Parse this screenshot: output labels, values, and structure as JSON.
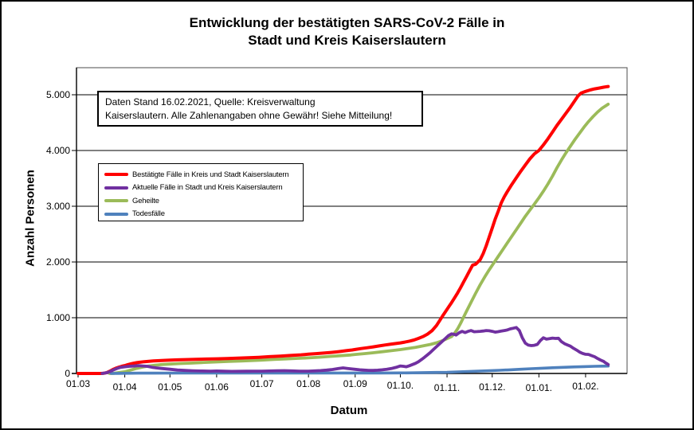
{
  "window": {
    "background": "#FFFFFF",
    "border_color": "#000000"
  },
  "chart_data": {
    "type": "line",
    "title": "Entwicklung der bestätigten SARS-CoV-2 Fälle in\nStadt und Kreis Kaiserslautern",
    "xlabel": "Datum",
    "ylabel": "Anzahl Personen",
    "annotation": "Daten Stand 16.02.2021, Quelle: Kreisverwaltung\nKaiserslautern. Alle Zahlenangaben ohne Gewähr! Siehe Mitteilung!",
    "x_axis": {
      "unit": "days since 01.03.2020",
      "tick_labels": [
        "01.03",
        "01.04",
        "01.05",
        "01.06",
        "01.07",
        "01.08",
        "01.09",
        "01.10.",
        "01.11.",
        "01.12.",
        "01.01.",
        "01.02."
      ],
      "tick_days": [
        0,
        31,
        61,
        92,
        122,
        153,
        184,
        214,
        245,
        275,
        306,
        337
      ],
      "range_days": [
        0,
        362
      ]
    },
    "y_axis": {
      "ticks": [
        0,
        1000,
        2000,
        3000,
        4000,
        5000
      ],
      "tick_labels": [
        "0",
        "1.000",
        "2.000",
        "3.000",
        "4.000",
        "5.000"
      ],
      "range": [
        0,
        5471
      ],
      "grid": true,
      "grid_color": "#000000"
    },
    "legend": {
      "position": "upper-left-inside"
    },
    "series": [
      {
        "name": "Bestätigte Fälle in Kreis und Stadt Kaiserslautern",
        "color": "#FF0000",
        "x": [
          0,
          10,
          15,
          17,
          19,
          21,
          23,
          25,
          27,
          29,
          31,
          33,
          35,
          37,
          39,
          41,
          44,
          47,
          50,
          54,
          58,
          61,
          66,
          71,
          78,
          85,
          92,
          99,
          106,
          113,
          120,
          127,
          134,
          141,
          148,
          153,
          158,
          163,
          168,
          173,
          178,
          182,
          184,
          188,
          192,
          196,
          200,
          204,
          208,
          211,
          214,
          217,
          220,
          223,
          226,
          229,
          232,
          235,
          238,
          240,
          242,
          244,
          246,
          248,
          250,
          252,
          254,
          256,
          258,
          260,
          262,
          264,
          267,
          269,
          271,
          273,
          275,
          277,
          279,
          281,
          283,
          285,
          288,
          291,
          294,
          297,
          300,
          303,
          306,
          309,
          312,
          315,
          318,
          321,
          324,
          327,
          330,
          332,
          334,
          337,
          340,
          343,
          346,
          349,
          352
        ],
        "y": [
          0,
          0,
          0,
          3,
          15,
          40,
          70,
          95,
          112,
          128,
          142,
          158,
          172,
          184,
          194,
          202,
          211,
          218,
          224,
          230,
          236,
          240,
          245,
          249,
          254,
          258,
          263,
          269,
          275,
          282,
          290,
          301,
          312,
          323,
          335,
          346,
          356,
          366,
          377,
          392,
          408,
          422,
          430,
          447,
          462,
          477,
          494,
          511,
          527,
          537,
          548,
          563,
          580,
          600,
          628,
          662,
          706,
          765,
          860,
          945,
          1030,
          1110,
          1190,
          1270,
          1355,
          1445,
          1540,
          1640,
          1740,
          1845,
          1945,
          1960,
          2040,
          2150,
          2290,
          2450,
          2610,
          2770,
          2910,
          3060,
          3170,
          3260,
          3390,
          3510,
          3630,
          3740,
          3850,
          3940,
          4000,
          4100,
          4210,
          4330,
          4450,
          4560,
          4670,
          4780,
          4900,
          4980,
          5030,
          5060,
          5085,
          5105,
          5120,
          5135,
          5148
        ]
      },
      {
        "name": "Aktuelle Fälle in Stadt und Kreis Kaiserslautern",
        "color": "#7030A0",
        "x": [
          16,
          18,
          20,
          22,
          24,
          26,
          28,
          31,
          34,
          37,
          40,
          43,
          46,
          49,
          52,
          56,
          61,
          66,
          71,
          76,
          81,
          88,
          92,
          97,
          102,
          107,
          112,
          117,
          122,
          127,
          132,
          137,
          142,
          147,
          153,
          157,
          161,
          165,
          169,
          173,
          176,
          179,
          182,
          184,
          187,
          190,
          193,
          196,
          199,
          202,
          205,
          208,
          211,
          214,
          216,
          218,
          220,
          222,
          224,
          226,
          228,
          230,
          232,
          234,
          236,
          238,
          240,
          242,
          244,
          246,
          248,
          250,
          251,
          253,
          255,
          257,
          259,
          261,
          263,
          265,
          267,
          269,
          271,
          273,
          275,
          277,
          279,
          281,
          283,
          285,
          287,
          289,
          291,
          293,
          295,
          297,
          299,
          301,
          303,
          305,
          307,
          309,
          311,
          313,
          315,
          317,
          319,
          321,
          323,
          325,
          327,
          329,
          331,
          333,
          335,
          337,
          339,
          341,
          343,
          345,
          347,
          349,
          350,
          351,
          352
        ],
        "y": [
          0,
          8,
          22,
          45,
          70,
          92,
          108,
          120,
          128,
          133,
          140,
          135,
          128,
          112,
          100,
          88,
          76,
          62,
          54,
          48,
          44,
          42,
          44,
          40,
          37,
          38,
          40,
          42,
          42,
          45,
          48,
          50,
          46,
          42,
          42,
          46,
          52,
          60,
          72,
          88,
          100,
          90,
          80,
          75,
          66,
          60,
          56,
          54,
          58,
          66,
          76,
          88,
          108,
          135,
          128,
          120,
          138,
          160,
          182,
          210,
          248,
          290,
          335,
          380,
          430,
          480,
          530,
          580,
          630,
          680,
          710,
          700,
          688,
          730,
          755,
          735,
          755,
          770,
          748,
          752,
          755,
          762,
          770,
          765,
          755,
          742,
          750,
          760,
          770,
          780,
          800,
          812,
          825,
          770,
          640,
          545,
          508,
          500,
          505,
          522,
          590,
          640,
          615,
          625,
          635,
          628,
          632,
          570,
          535,
          512,
          488,
          452,
          420,
          385,
          360,
          345,
          342,
          320,
          300,
          268,
          240,
          215,
          195,
          178,
          160
        ]
      },
      {
        "name": "Geheilte",
        "color": "#9BBB59",
        "x": [
          21,
          24,
          27,
          31,
          35,
          39,
          43,
          47,
          51,
          55,
          61,
          68,
          75,
          82,
          92,
          100,
          108,
          116,
          122,
          130,
          138,
          146,
          153,
          160,
          167,
          174,
          181,
          184,
          190,
          196,
          202,
          208,
          214,
          219,
          224,
          229,
          234,
          238,
          242,
          245,
          248,
          250,
          252,
          254,
          256,
          258,
          261,
          264,
          267,
          270,
          273,
          276,
          279,
          282,
          285,
          288,
          291,
          294,
          297,
          300,
          303,
          306,
          309,
          312,
          315,
          318,
          321,
          324,
          327,
          330,
          333,
          336,
          339,
          342,
          345,
          348,
          352
        ],
        "y": [
          0,
          3,
          15,
          30,
          62,
          92,
          115,
          135,
          148,
          158,
          168,
          178,
          186,
          196,
          207,
          216,
          224,
          233,
          240,
          251,
          261,
          271,
          280,
          292,
          305,
          318,
          332,
          342,
          356,
          372,
          390,
          408,
          428,
          448,
          468,
          494,
          522,
          550,
          588,
          625,
          662,
          720,
          800,
          900,
          1010,
          1120,
          1280,
          1440,
          1590,
          1730,
          1860,
          1980,
          2100,
          2220,
          2340,
          2460,
          2580,
          2700,
          2820,
          2930,
          3040,
          3150,
          3270,
          3400,
          3540,
          3690,
          3830,
          3960,
          4080,
          4200,
          4310,
          4420,
          4520,
          4610,
          4690,
          4760,
          4830
        ]
      },
      {
        "name": "Todesfälle",
        "color": "#4F81BD",
        "x": [
          22,
          26,
          31,
          40,
          50,
          70,
          92,
          120,
          153,
          184,
          200,
          214,
          222,
          230,
          238,
          245,
          252,
          259,
          266,
          273,
          280,
          287,
          294,
          301,
          308,
          315,
          322,
          329,
          336,
          343,
          348,
          352
        ],
        "y": [
          0,
          2,
          3,
          5,
          6,
          7,
          7,
          7,
          8,
          8,
          9,
          10,
          12,
          15,
          18,
          22,
          28,
          34,
          41,
          49,
          57,
          66,
          76,
          86,
          95,
          103,
          110,
          117,
          123,
          128,
          131,
          133
        ]
      }
    ]
  }
}
